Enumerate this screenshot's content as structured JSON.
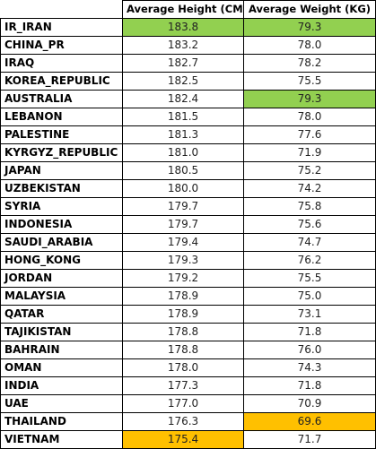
{
  "colors": {
    "highlight_max": "#92d050",
    "highlight_min": "#ffc000",
    "grid": "#000000",
    "background": "#ffffff"
  },
  "table": {
    "headers": [
      "",
      "Average Height (CM)",
      "Average Weight (KG)"
    ],
    "rows": [
      {
        "country": "IR_IRAN",
        "height": "183.8",
        "weight": "79.3",
        "height_hl": "max",
        "weight_hl": "max"
      },
      {
        "country": "CHINA_PR",
        "height": "183.2",
        "weight": "78.0",
        "height_hl": "",
        "weight_hl": ""
      },
      {
        "country": "IRAQ",
        "height": "182.7",
        "weight": "78.2",
        "height_hl": "",
        "weight_hl": ""
      },
      {
        "country": "KOREA_REPUBLIC",
        "height": "182.5",
        "weight": "75.5",
        "height_hl": "",
        "weight_hl": ""
      },
      {
        "country": "AUSTRALIA",
        "height": "182.4",
        "weight": "79.3",
        "height_hl": "",
        "weight_hl": "max"
      },
      {
        "country": "LEBANON",
        "height": "181.5",
        "weight": "78.0",
        "height_hl": "",
        "weight_hl": ""
      },
      {
        "country": "PALESTINE",
        "height": "181.3",
        "weight": "77.6",
        "height_hl": "",
        "weight_hl": ""
      },
      {
        "country": "KYRGYZ_REPUBLIC",
        "height": "181.0",
        "weight": "71.9",
        "height_hl": "",
        "weight_hl": ""
      },
      {
        "country": "JAPAN",
        "height": "180.5",
        "weight": "75.2",
        "height_hl": "",
        "weight_hl": ""
      },
      {
        "country": "UZBEKISTAN",
        "height": "180.0",
        "weight": "74.2",
        "height_hl": "",
        "weight_hl": ""
      },
      {
        "country": "SYRIA",
        "height": "179.7",
        "weight": "75.8",
        "height_hl": "",
        "weight_hl": ""
      },
      {
        "country": "INDONESIA",
        "height": "179.7",
        "weight": "75.6",
        "height_hl": "",
        "weight_hl": ""
      },
      {
        "country": "SAUDI_ARABIA",
        "height": "179.4",
        "weight": "74.7",
        "height_hl": "",
        "weight_hl": ""
      },
      {
        "country": "HONG_KONG",
        "height": "179.3",
        "weight": "76.2",
        "height_hl": "",
        "weight_hl": ""
      },
      {
        "country": "JORDAN",
        "height": "179.2",
        "weight": "75.5",
        "height_hl": "",
        "weight_hl": ""
      },
      {
        "country": "MALAYSIA",
        "height": "178.9",
        "weight": "75.0",
        "height_hl": "",
        "weight_hl": ""
      },
      {
        "country": "QATAR",
        "height": "178.9",
        "weight": "73.1",
        "height_hl": "",
        "weight_hl": ""
      },
      {
        "country": "TAJIKISTAN",
        "height": "178.8",
        "weight": "71.8",
        "height_hl": "",
        "weight_hl": ""
      },
      {
        "country": "BAHRAIN",
        "height": "178.8",
        "weight": "76.0",
        "height_hl": "",
        "weight_hl": ""
      },
      {
        "country": "OMAN",
        "height": "178.0",
        "weight": "74.3",
        "height_hl": "",
        "weight_hl": ""
      },
      {
        "country": "INDIA",
        "height": "177.3",
        "weight": "71.8",
        "height_hl": "",
        "weight_hl": ""
      },
      {
        "country": "UAE",
        "height": "177.0",
        "weight": "70.9",
        "height_hl": "",
        "weight_hl": ""
      },
      {
        "country": "THAILAND",
        "height": "176.3",
        "weight": "69.6",
        "height_hl": "",
        "weight_hl": "min"
      },
      {
        "country": "VIETNAM",
        "height": "175.4",
        "weight": "71.7",
        "height_hl": "min",
        "weight_hl": ""
      }
    ]
  }
}
